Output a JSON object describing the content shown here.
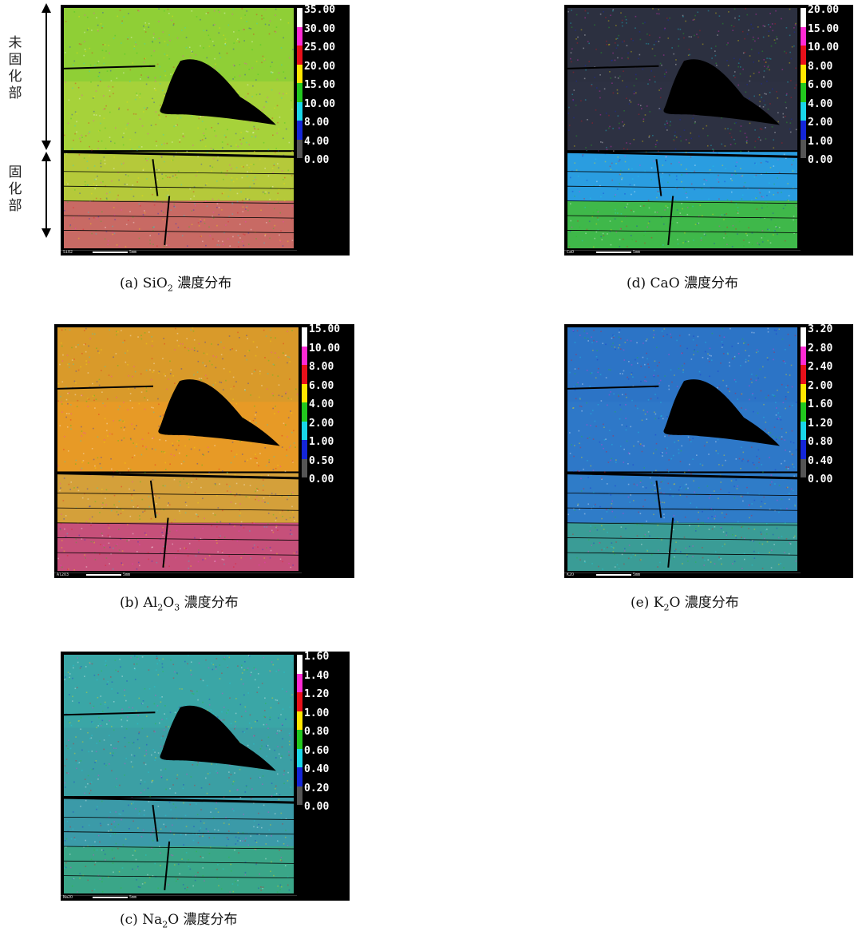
{
  "side_labels": {
    "upper": "未固化部",
    "lower": "固化部"
  },
  "scale_text": "5mm",
  "panels": [
    {
      "id": "a",
      "map_label": "SiO2",
      "caption_prefix": "(a) SiO",
      "caption_sub": "2",
      "caption_mid": "",
      "caption_sub2": "",
      "caption_suffix": " 濃度分布",
      "legend": [
        "35.00",
        "30.00",
        "25.00",
        "20.00",
        "15.00",
        "10.00",
        "8.00",
        "4.00",
        "0.00"
      ]
    },
    {
      "id": "b",
      "map_label": "Al2O3",
      "caption_prefix": "(b) Al",
      "caption_sub": "2",
      "caption_mid": "O",
      "caption_sub2": "3",
      "caption_suffix": " 濃度分布",
      "legend": [
        "15.00",
        "10.00",
        "8.00",
        "6.00",
        "4.00",
        "2.00",
        "1.00",
        "0.50",
        "0.00"
      ]
    },
    {
      "id": "c",
      "map_label": "Na2O",
      "caption_prefix": "(c) Na",
      "caption_sub": "2",
      "caption_mid": "O",
      "caption_sub2": "",
      "caption_suffix": " 濃度分布",
      "legend": [
        "1.60",
        "1.40",
        "1.20",
        "1.00",
        "0.80",
        "0.60",
        "0.40",
        "0.20",
        "0.00"
      ]
    },
    {
      "id": "d",
      "map_label": "CaO",
      "caption_prefix": "(d) CaO",
      "caption_sub": "",
      "caption_mid": "",
      "caption_sub2": "",
      "caption_suffix": " 濃度分布",
      "legend": [
        "20.00",
        "15.00",
        "10.00",
        "8.00",
        "6.00",
        "4.00",
        "2.00",
        "1.00",
        "0.00"
      ]
    },
    {
      "id": "e",
      "map_label": "K2O",
      "caption_prefix": "(e) K",
      "caption_sub": "2",
      "caption_mid": "O",
      "caption_sub2": "",
      "caption_suffix": " 濃度分布",
      "legend": [
        "3.20",
        "2.80",
        "2.40",
        "2.00",
        "1.60",
        "1.20",
        "0.80",
        "0.40",
        "0.00"
      ]
    }
  ],
  "legend_colors": [
    "#ffffff",
    "#ff2ad4",
    "#e8101a",
    "#ffe600",
    "#22c81e",
    "#19d6e8",
    "#1426d8",
    "#555555"
  ],
  "map_palettes": {
    "a": {
      "top": "#8fcf36",
      "upper": "#a6d23a",
      "mid": "#b5c93a",
      "bottom": "#c86a64",
      "void": "#000000"
    },
    "b": {
      "top": "#d99a2a",
      "upper": "#e79a26",
      "mid": "#d4a03a",
      "bottom": "#c6507a",
      "void": "#000000"
    },
    "c": {
      "top": "#3aa6a6",
      "upper": "#3b9fa4",
      "mid": "#3b9aa8",
      "bottom": "#3aa688",
      "void": "#000000"
    },
    "d": {
      "top": "#2c3040",
      "upper": "#2d3142",
      "mid": "#2a9de0",
      "bottom": "#3fb84a",
      "void": "#000000"
    },
    "e": {
      "top": "#2c74c6",
      "upper": "#2e78c8",
      "mid": "#2f7cc8",
      "bottom": "#3a9c96",
      "void": "#000000"
    }
  }
}
